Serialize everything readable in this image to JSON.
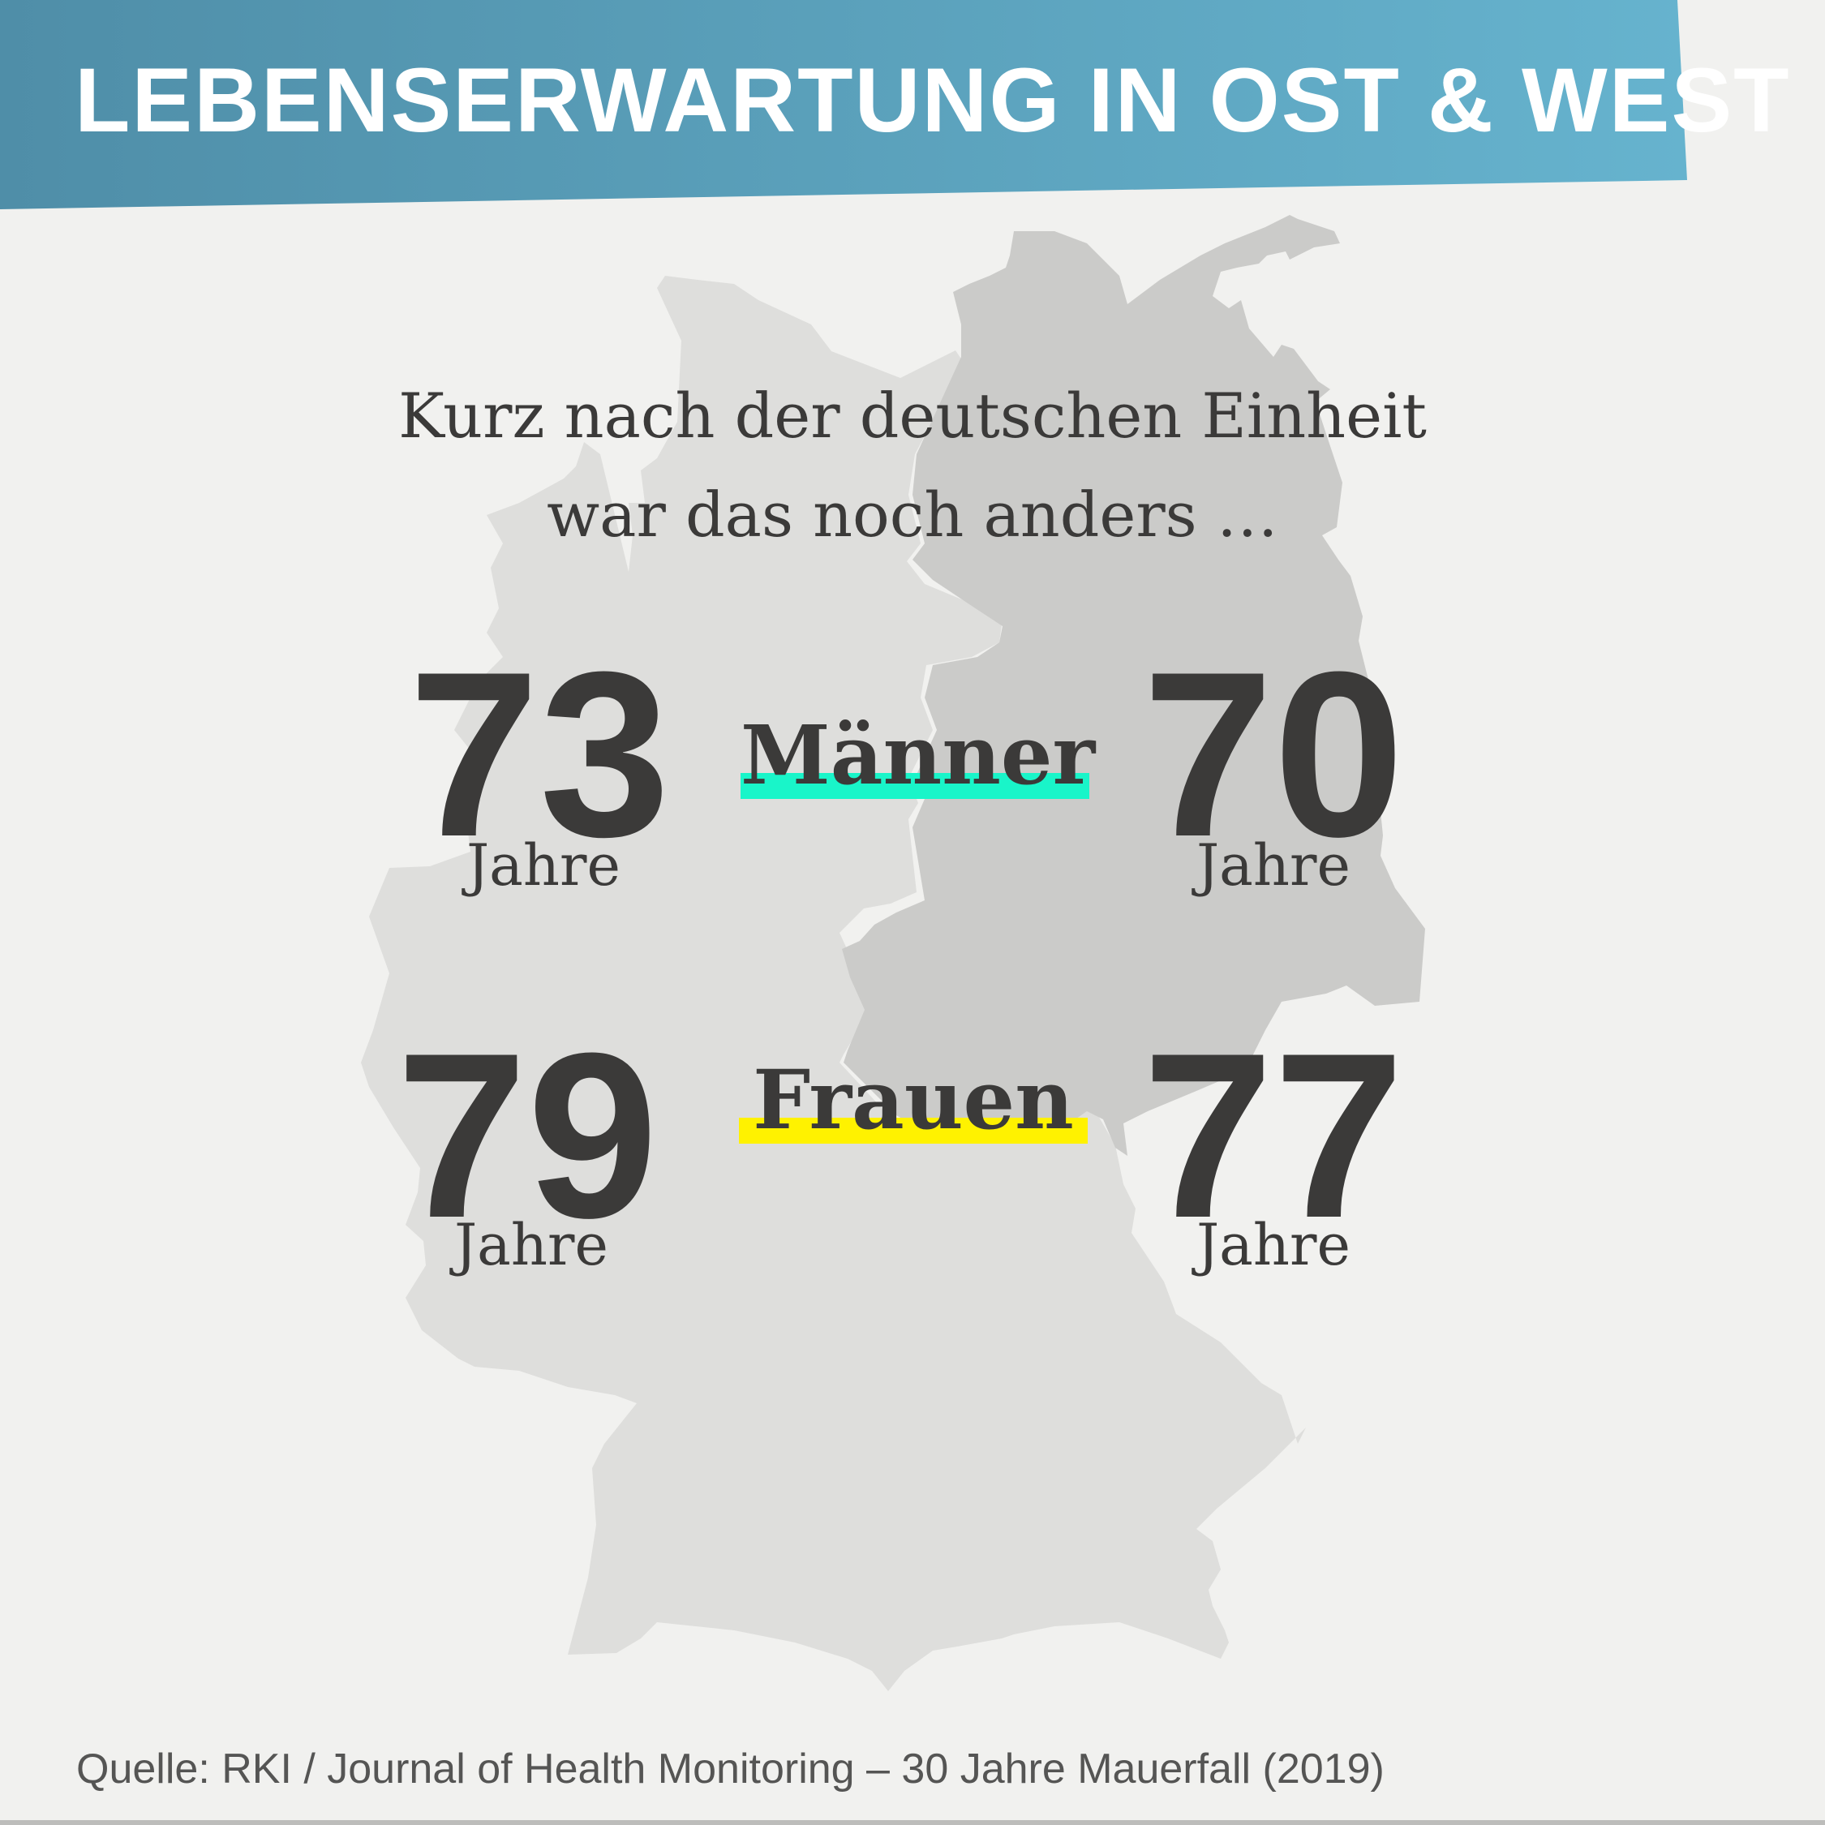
{
  "title": "LEBENSERWARTUNG IN OST & WEST",
  "intro": {
    "line1": "Kurz nach der deutschen Einheit",
    "line2": "war das noch anders …"
  },
  "men": {
    "label": "Männer",
    "west_value": "73",
    "west_unit": "Jahre",
    "east_value": "70",
    "east_unit": "Jahre",
    "accent_color": "#19f5c9"
  },
  "women": {
    "label": "Frauen",
    "west_value": "79",
    "west_unit": "Jahre",
    "east_value": "77",
    "east_unit": "Jahre",
    "accent_color": "#fff200"
  },
  "source": "Quelle: RKI / Journal of Health Monitoring – 30 Jahre Mauerfall (2019)",
  "colors": {
    "background": "#f1f1ef",
    "banner_start": "#4f8ea8",
    "banner_end": "#66b3ce",
    "west_map": "#dededc",
    "east_map": "#cbcbc9",
    "text": "#3b3a39"
  }
}
